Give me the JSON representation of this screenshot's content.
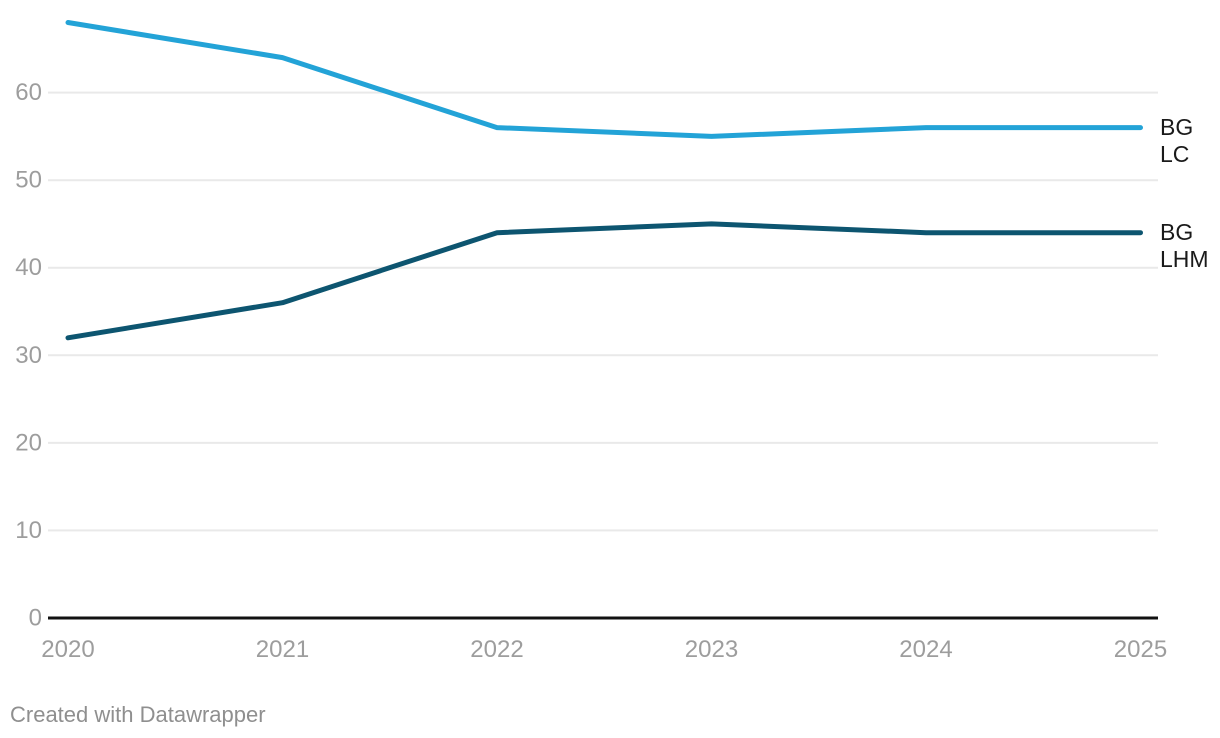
{
  "chart_data": {
    "type": "line",
    "x": [
      "2020",
      "2021",
      "2022",
      "2023",
      "2024",
      "2025"
    ],
    "series": [
      {
        "name": "BG LC",
        "values": [
          68,
          64,
          56,
          55,
          56,
          56
        ],
        "color": "#23A3D7"
      },
      {
        "name": "BG LHM",
        "values": [
          32,
          36,
          44,
          45,
          44,
          44
        ],
        "color": "#0D5570"
      }
    ],
    "yticks": [
      0,
      10,
      20,
      30,
      40,
      50,
      60
    ],
    "ylim": [
      0,
      70.5
    ],
    "grid": true,
    "legend_position": "right-of-line-end"
  },
  "footer": {
    "text": "Created with Datawrapper"
  },
  "colors": {
    "background": "#ffffff",
    "grid_line": "#e9e9e9",
    "axis_line": "#111111",
    "tick_label": "#9d9d9d",
    "series_label": "#1a1a1a",
    "footer_text": "#8f8f8f"
  }
}
